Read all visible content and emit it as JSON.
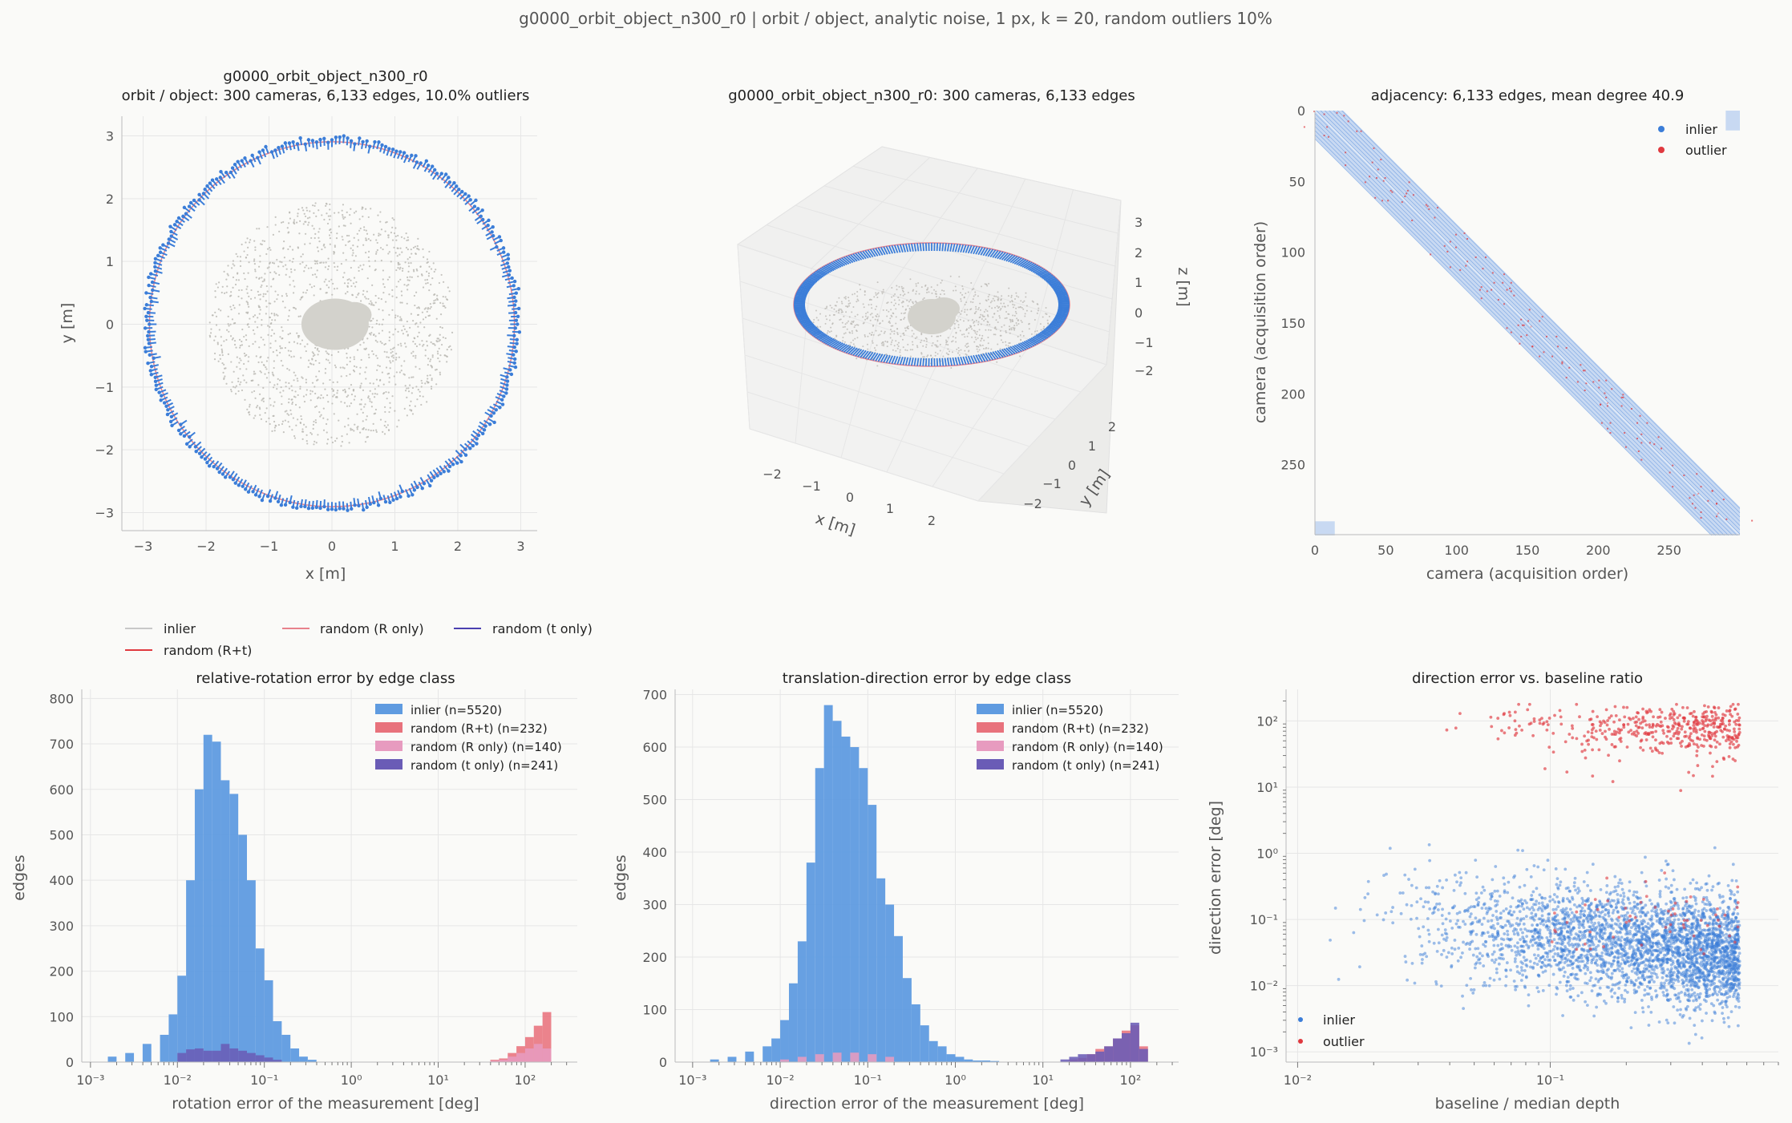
{
  "suptitle": "g0000_orbit_object_n300_r0  |  orbit / object, analytic noise, 1 px, k = 20, random outliers 10%",
  "colors": {
    "inlier": "#3b7dd8",
    "inlier_hist": "#5f9be0",
    "outlier": "#e0393f",
    "r_plus_t": "#e8727c",
    "r_only": "#e79bbf",
    "t_only": "#6a5cb6",
    "object_points": "#b8b6b0",
    "grid": "#e6e6e6",
    "axis": "#555555",
    "ring_line": "#e8828c",
    "mesh": "#d3d2cc",
    "adj_fill": "#c8d9f2"
  },
  "orbit_top": {
    "title_line1": "g0000_orbit_object_n300_r0",
    "title_line2": "orbit / object: 300 cameras, 6,133 edges, 10.0% outliers",
    "xlabel": "x [m]",
    "ylabel": "y [m]",
    "xticks": [
      "−3",
      "−2",
      "−1",
      "0",
      "1",
      "2",
      "3"
    ],
    "yticks": [
      "3",
      "2",
      "1",
      "0",
      "−1",
      "−2",
      "−3"
    ]
  },
  "orbit_3d": {
    "title": "g0000_orbit_object_n300_r0: 300 cameras, 6,133 edges",
    "xlabel": "x [m]",
    "ylabel": "y [m]",
    "zlabel": "z [m]",
    "xticks": [
      "−2",
      "−1",
      "0",
      "1",
      "2"
    ],
    "yticks": [
      "2",
      "1",
      "0",
      "−1",
      "−2"
    ],
    "zticks": [
      "3",
      "2",
      "1",
      "0",
      "−1",
      "−2"
    ]
  },
  "adjacency": {
    "title": "adjacency: 6,133 edges, mean degree 40.9",
    "xlabel": "camera (acquisition order)",
    "ylabel": "camera (acquisition order)",
    "xticks": [
      "0",
      "50",
      "100",
      "150",
      "200",
      "250"
    ],
    "yticks": [
      "0",
      "50",
      "100",
      "150",
      "200",
      "250"
    ],
    "legend": [
      "inlier",
      "outlier"
    ]
  },
  "top_legend": [
    "inlier",
    "random (R+t)",
    "random (R only)",
    "random (t only)"
  ],
  "rot_hist": {
    "title": "relative-rotation error by edge class",
    "xlabel": "rotation error of the measurement [deg]",
    "ylabel": "edges",
    "xticks": [
      "10⁻³",
      "10⁻²",
      "10⁻¹",
      "10⁰",
      "10¹",
      "10²"
    ],
    "yticks": [
      "0",
      "100",
      "200",
      "300",
      "400",
      "500",
      "600",
      "700",
      "800"
    ],
    "legend": [
      "inlier (n=5520)",
      "random (R+t) (n=232)",
      "random (R only) (n=140)",
      "random (t only) (n=241)"
    ]
  },
  "dir_hist": {
    "title": "translation-direction error by edge class",
    "xlabel": "direction error of the measurement [deg]",
    "ylabel": "edges",
    "xticks": [
      "10⁻³",
      "10⁻²",
      "10⁻¹",
      "10⁰",
      "10¹",
      "10²"
    ],
    "yticks": [
      "0",
      "100",
      "200",
      "300",
      "400",
      "500",
      "600",
      "700"
    ],
    "legend": [
      "inlier (n=5520)",
      "random (R+t) (n=232)",
      "random (R only) (n=140)",
      "random (t only) (n=241)"
    ]
  },
  "scatter": {
    "title": "direction error vs. baseline ratio",
    "xlabel": "baseline / median depth",
    "ylabel": "direction error [deg]",
    "xticks": [
      "10⁻²",
      "10⁻¹"
    ],
    "yticks": [
      "10²",
      "10¹",
      "10⁰",
      "10⁻¹",
      "10⁻²",
      "10⁻³"
    ],
    "legend": [
      "inlier",
      "outlier"
    ]
  },
  "chart_data": [
    {
      "type": "scatter",
      "panel": "orbit_top",
      "xlim": [
        -3.3,
        3.3
      ],
      "ylim": [
        -3.3,
        3.3
      ],
      "series": [
        {
          "name": "",
          "desc": "300 cameras on circle radius 2.9 m"
        }
      ]
    },
    {
      "type": "scatter",
      "panel": "orbit_3d",
      "xlim": [
        -3,
        3
      ],
      "ylim": [
        -3,
        3
      ],
      "zlim": [
        -2.5,
        3.5
      ]
    },
    {
      "type": "heatmap",
      "panel": "adjacency",
      "n": 300,
      "band_halfwidth": 20
    },
    {
      "type": "bar",
      "panel": "rot_hist",
      "log_x": true,
      "bins_log10_edges": [
        -2.8,
        -2.6,
        -2.4,
        -2.2,
        -2.0,
        -1.8,
        -1.6,
        -1.4,
        -1.2,
        -1.0,
        -0.8,
        -0.6,
        -0.4,
        -0.2,
        0.0
      ],
      "series": [
        {
          "name": "inlier (n=5520)",
          "log_x_left": [
            -2.8,
            -2.6,
            -2.4,
            -2.2,
            -2.1,
            -2.0,
            -1.9,
            -1.8,
            -1.7,
            -1.6,
            -1.5,
            -1.4,
            -1.3,
            -1.2,
            -1.1,
            -1.0,
            -0.9,
            -0.8,
            -0.7,
            -0.6,
            -0.5
          ],
          "values": [
            12,
            20,
            40,
            60,
            105,
            190,
            400,
            600,
            720,
            705,
            620,
            590,
            500,
            400,
            250,
            180,
            90,
            60,
            30,
            12,
            5
          ]
        },
        {
          "name": "random (R+t) (n=232)",
          "log_x_left": [
            1.6,
            1.7,
            1.8,
            1.9,
            2.0,
            2.1,
            2.2
          ],
          "values": [
            5,
            8,
            20,
            35,
            55,
            80,
            110
          ]
        },
        {
          "name": "random (R only) (n=140)",
          "log_x_left": [
            1.6,
            1.7,
            1.8,
            1.9,
            2.0,
            2.1,
            2.2
          ],
          "values": [
            3,
            5,
            12,
            20,
            30,
            40,
            30
          ]
        },
        {
          "name": "random (t only) (n=241)",
          "log_x_left": [
            -2.0,
            -1.9,
            -1.8,
            -1.7,
            -1.6,
            -1.5,
            -1.4,
            -1.3,
            -1.2,
            -1.1,
            -1.0,
            -0.9
          ],
          "values": [
            20,
            28,
            30,
            25,
            25,
            40,
            30,
            25,
            20,
            15,
            10,
            5
          ]
        }
      ],
      "ylim": [
        0,
        820
      ]
    },
    {
      "type": "bar",
      "panel": "dir_hist",
      "log_x": true,
      "series": [
        {
          "name": "inlier (n=5520)",
          "log_x_left": [
            -2.8,
            -2.6,
            -2.4,
            -2.2,
            -2.1,
            -2.0,
            -1.9,
            -1.8,
            -1.7,
            -1.6,
            -1.5,
            -1.4,
            -1.3,
            -1.2,
            -1.1,
            -1.0,
            -0.9,
            -0.8,
            -0.7,
            -0.6,
            -0.5,
            -0.4,
            -0.3,
            -0.2,
            -0.1,
            0.0,
            0.1,
            0.2,
            0.3,
            0.4
          ],
          "values": [
            5,
            10,
            20,
            30,
            45,
            80,
            150,
            230,
            380,
            560,
            680,
            650,
            620,
            600,
            560,
            490,
            350,
            300,
            240,
            160,
            110,
            70,
            40,
            30,
            15,
            10,
            5,
            3,
            3,
            2
          ]
        },
        {
          "name": "random (R+t) (n=232)",
          "log_x_left": [
            1.3,
            1.4,
            1.5,
            1.6,
            1.7,
            1.8,
            1.9,
            2.0,
            2.1
          ],
          "values": [
            5,
            8,
            15,
            25,
            30,
            45,
            60,
            70,
            30
          ]
        },
        {
          "name": "random (R only) (n=140)",
          "log_x_left": [
            -2.0,
            -1.8,
            -1.6,
            -1.4,
            -1.2,
            -1.0,
            -0.8
          ],
          "values": [
            5,
            10,
            15,
            18,
            18,
            15,
            10
          ]
        },
        {
          "name": "random (t only) (n=241)",
          "log_x_left": [
            1.2,
            1.3,
            1.4,
            1.5,
            1.6,
            1.7,
            1.8,
            1.9,
            2.0,
            2.1
          ],
          "values": [
            5,
            10,
            15,
            15,
            20,
            30,
            45,
            55,
            75,
            25
          ]
        }
      ],
      "ylim": [
        0,
        710
      ]
    },
    {
      "type": "scatter",
      "panel": "scatter",
      "log_x": true,
      "log_y": true,
      "xlim": [
        0.009,
        0.8
      ],
      "ylim": [
        0.0007,
        300
      ],
      "series": [
        {
          "name": "inlier"
        },
        {
          "name": "outlier"
        }
      ]
    }
  ]
}
